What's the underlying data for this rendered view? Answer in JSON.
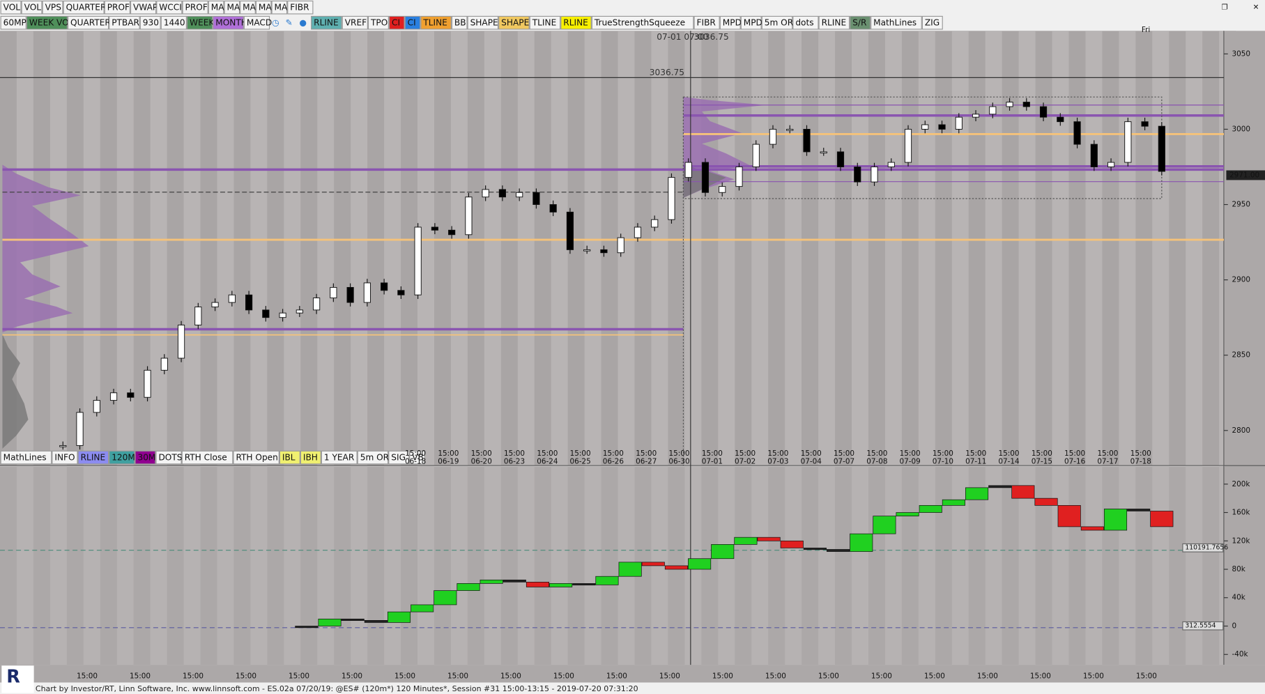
{
  "toolbar_top": [
    "VOL",
    "VOL",
    "VPS",
    "QUARTER",
    "PROF",
    "VWAP",
    "WCCI",
    "PROF",
    "MA",
    "MA",
    "MA",
    "MA",
    "MA",
    "FIBR"
  ],
  "toolbar_main": [
    {
      "label": "60MP"
    },
    {
      "label": "WEEK VO",
      "bg": "#4f8f5a"
    },
    {
      "label": "QUARTER"
    },
    {
      "label": "PTBAR"
    },
    {
      "label": "930"
    },
    {
      "label": "1440"
    },
    {
      "label": "WEEK",
      "bg": "#4f8f5a"
    },
    {
      "label": "MONTH",
      "bg": "#b070d8"
    },
    {
      "label": "MACD"
    },
    {
      "label": "RLINE",
      "bg": "#5fb0b0"
    },
    {
      "label": "VREF"
    },
    {
      "label": "TPO"
    },
    {
      "label": "CI",
      "bg": "#e02020"
    },
    {
      "label": "CI",
      "bg": "#2a80e0"
    },
    {
      "label": "TLINE",
      "bg": "#f0a030"
    },
    {
      "label": "BB"
    },
    {
      "label": "SHAPE"
    },
    {
      "label": "SHAPE",
      "bg": "#f0c860"
    },
    {
      "label": "TLINE"
    },
    {
      "label": "RLINE",
      "bg": "#f8f000"
    },
    {
      "label": "TrueStrengthSqueeze"
    },
    {
      "label": "FIBR"
    },
    {
      "label": "MPD"
    },
    {
      "label": "MPD"
    },
    {
      "label": "5m OR"
    },
    {
      "label": "dots"
    },
    {
      "label": "RLINE"
    },
    {
      "label": "S/R",
      "bg": "#6a9070"
    },
    {
      "label": "MathLines"
    },
    {
      "label": "ZIG"
    }
  ],
  "toolbar_bottom": [
    {
      "label": "MathLines"
    },
    {
      "label": "INFO"
    },
    {
      "label": "RLINE",
      "bg": "#8c8cf0"
    },
    {
      "label": "120M",
      "bg": "#40a0a0"
    },
    {
      "label": "30M",
      "bg": "#900090"
    },
    {
      "label": "DOTS"
    },
    {
      "label": "RTH Close"
    },
    {
      "label": "RTH Open"
    },
    {
      "label": "IBL",
      "bg": "#f0f070"
    },
    {
      "label": "IBH",
      "bg": "#f0f070"
    },
    {
      "label": "1 YEAR"
    },
    {
      "label": "5m OR"
    },
    {
      "label": "SIG"
    },
    {
      "label": "VB"
    }
  ],
  "crosshair": {
    "time": "07-01 07:00",
    "price": "3036.75",
    "marker": "3036.75"
  },
  "day_label": "Fri",
  "last_price": "2971.00",
  "price_axis": [
    3050,
    3000,
    2950,
    2900,
    2850,
    2800
  ],
  "price_closes": [
    2790,
    2812,
    2820,
    2825,
    2822,
    2840,
    2848,
    2870,
    2882,
    2885,
    2890,
    2880,
    2875,
    2878,
    2880,
    2888,
    2895,
    2885,
    2898,
    2893,
    2890,
    2935,
    2933,
    2930,
    2955,
    2960,
    2955,
    2958,
    2950,
    2945,
    2920,
    2920,
    2918,
    2928,
    2935,
    2940,
    2968,
    2978,
    2958,
    2962,
    2975,
    2990,
    3000,
    3000,
    2985,
    2985,
    2975,
    2965,
    2975,
    2978,
    3000,
    3003,
    3000,
    3008,
    3010,
    3015,
    3018,
    3015,
    3008,
    3005,
    2990,
    2975,
    2978,
    3005,
    3002,
    2972
  ],
  "date_axis": [
    {
      "time": "15:00",
      "date": "06-18"
    },
    {
      "time": "15:00",
      "date": "06-19"
    },
    {
      "time": "15:00",
      "date": "06-20"
    },
    {
      "time": "15:00",
      "date": "06-23"
    },
    {
      "time": "15:00",
      "date": "06-24"
    },
    {
      "time": "15:00",
      "date": "06-25"
    },
    {
      "time": "15:00",
      "date": "06-26"
    },
    {
      "time": "15:00",
      "date": "06-27"
    },
    {
      "time": "15:00",
      "date": "06-30"
    },
    {
      "time": "15:00",
      "date": "07-01"
    },
    {
      "time": "15:00",
      "date": "07-02"
    },
    {
      "time": "15:00",
      "date": "07-03"
    },
    {
      "time": "15:00",
      "date": "07-04"
    },
    {
      "time": "15:00",
      "date": "07-07"
    },
    {
      "time": "15:00",
      "date": "07-08"
    },
    {
      "time": "15:00",
      "date": "07-09"
    },
    {
      "time": "15:00",
      "date": "07-10"
    },
    {
      "time": "15:00",
      "date": "07-11"
    },
    {
      "time": "15:00",
      "date": "07-14"
    },
    {
      "time": "15:00",
      "date": "07-15"
    },
    {
      "time": "15:00",
      "date": "07-16"
    },
    {
      "time": "15:00",
      "date": "07-17"
    },
    {
      "time": "15:00",
      "date": "07-18"
    }
  ],
  "indicator_axis": [
    {
      "value": 200000,
      "label": "200k"
    },
    {
      "value": 160000,
      "label": "160k"
    },
    {
      "value": 120000,
      "label": "120k"
    },
    {
      "value": 80000,
      "label": "80k"
    },
    {
      "value": 40000,
      "label": "40k"
    },
    0,
    {
      "value": -40000,
      "label": "-40k"
    }
  ],
  "indicator_markers": [
    {
      "value": 110191.7656,
      "label": "110191.7656"
    },
    {
      "value": 312.5554,
      "label": "312.5554"
    }
  ],
  "indicator_values": [
    0,
    10000,
    8000,
    5000,
    20000,
    30000,
    50000,
    60000,
    65000,
    62000,
    55000,
    60000,
    58000,
    70000,
    90000,
    85000,
    80000,
    95000,
    115000,
    125000,
    120000,
    110000,
    108000,
    105000,
    130000,
    155000,
    160000,
    170000,
    178000,
    195000,
    198000,
    180000,
    170000,
    140000,
    135000,
    165000,
    162000,
    140000
  ],
  "time_axis": [
    "15:00",
    "15:00",
    "15:00",
    "15:00",
    "15:00",
    "15:00",
    "15:00",
    "15:00",
    "15:00",
    "15:00",
    "15:00",
    "15:00",
    "15:00",
    "15:00",
    "15:00",
    "15:00",
    "15:00",
    "15:00",
    "15:00",
    "15:00",
    "15:00"
  ],
  "footer": "Chart by Investor/RT, Linn Software, Inc. www.linnsoft.com - ES.02a   07/20/19: @ES# (120m*) 120 Minutes*, Session #31 15:00-13:15 - 2019-07-20 07:31:20"
}
